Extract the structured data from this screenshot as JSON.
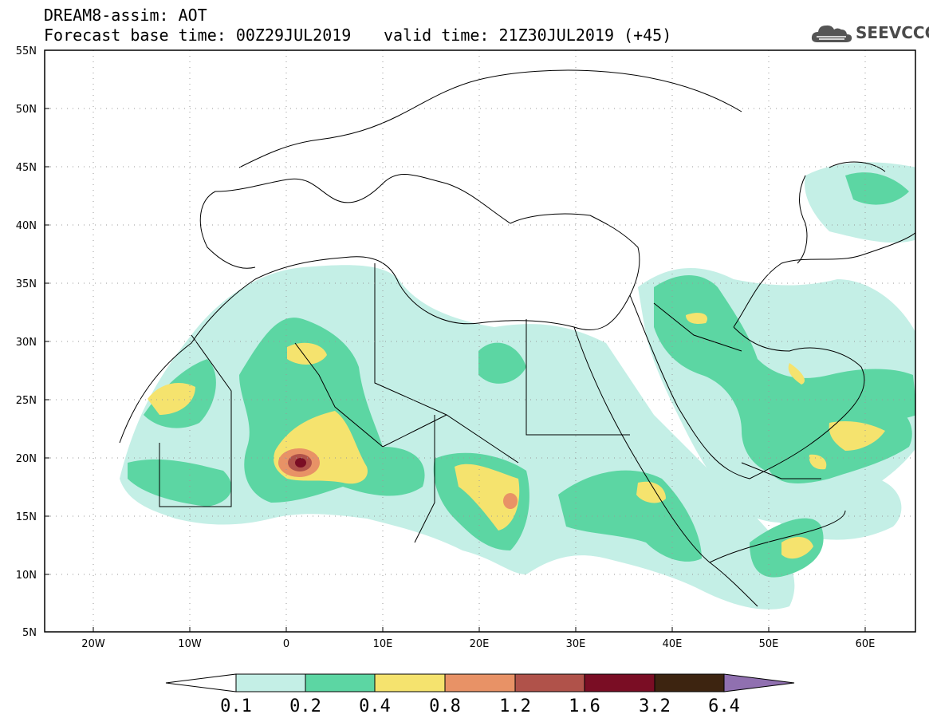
{
  "header": {
    "line1": "DREAM8-assim: AOT",
    "base_time": "Forecast base time: 00Z29JUL2019",
    "valid_time": "valid time: 21Z30JUL2019 (+45)"
  },
  "logo": {
    "text": "SEEVCCC",
    "icon": "cloud-icon"
  },
  "map": {
    "region": "North Africa / Middle East",
    "lon_range": [
      -25,
      65
    ],
    "lat_range": [
      5,
      55
    ],
    "lat_ticks": [
      "5N",
      "10N",
      "15N",
      "20N",
      "25N",
      "30N",
      "35N",
      "40N",
      "45N",
      "50N",
      "55N"
    ],
    "lon_ticks": [
      "20W",
      "10W",
      "0",
      "10E",
      "20E",
      "30E",
      "40E",
      "50E",
      "60E"
    ],
    "grid": "dotted"
  },
  "colorbar": {
    "labels": [
      "0.1",
      "0.2",
      "0.4",
      "0.8",
      "1.2",
      "1.6",
      "3.2",
      "6.4"
    ],
    "colors": [
      "#ffffff",
      "#c4efe6",
      "#5cd6a3",
      "#f5e36e",
      "#e89266",
      "#b0524a",
      "#7a0d24",
      "#3d2410",
      "#9070b0"
    ]
  }
}
